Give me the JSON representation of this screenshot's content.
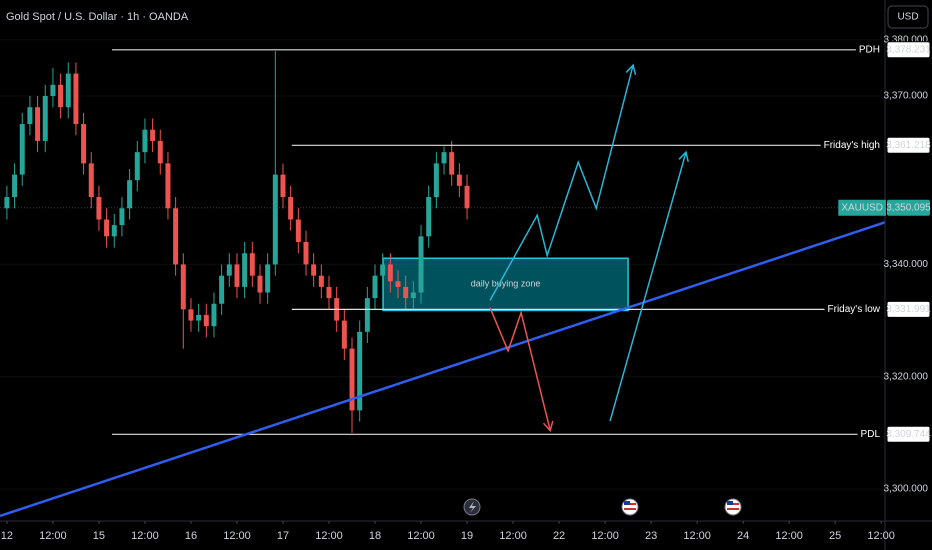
{
  "chart_data": {
    "type": "candlestick",
    "title": "Gold Spot / U.S. Dollar · 1h · OANDA",
    "currency": "USD",
    "up_color": "#26a69a",
    "down_color": "#ef5350",
    "xlim": [
      -1.8,
      229
    ],
    "ylim": [
      3294.3,
      3387.1
    ],
    "xticks": [
      {
        "value": 0,
        "label": "12"
      },
      {
        "value": 12,
        "label": "12:00"
      },
      {
        "value": 24,
        "label": "15"
      },
      {
        "value": 36,
        "label": "12:00"
      },
      {
        "value": 48,
        "label": "16"
      },
      {
        "value": 60,
        "label": "12:00"
      },
      {
        "value": 72,
        "label": "17"
      },
      {
        "value": 84,
        "label": "12:00"
      },
      {
        "value": 96,
        "label": "18"
      },
      {
        "value": 108,
        "label": "12:00"
      },
      {
        "value": 120,
        "label": "19"
      },
      {
        "value": 132,
        "label": "12:00"
      },
      {
        "value": 144,
        "label": "22"
      },
      {
        "value": 156,
        "label": "12:00"
      },
      {
        "value": 168,
        "label": "23"
      },
      {
        "value": 180,
        "label": "12:00"
      },
      {
        "value": 192,
        "label": "24"
      },
      {
        "value": 204,
        "label": "12:00"
      },
      {
        "value": 216,
        "label": "25"
      },
      {
        "value": 228,
        "label": "12:00"
      }
    ],
    "yticks": [
      {
        "value": 3300,
        "label": "3,300.000"
      },
      {
        "value": 3320,
        "label": "3,320.000"
      },
      {
        "value": 3340,
        "label": "3,340.000"
      },
      {
        "value": 3370,
        "label": "3,370.000"
      },
      {
        "value": 3380,
        "label": "3,380.000"
      }
    ],
    "x": [
      0,
      2,
      4,
      6,
      8,
      10,
      12,
      14,
      16,
      18,
      20,
      22,
      24,
      26,
      28,
      30,
      32,
      34,
      36,
      38,
      40,
      42,
      44,
      46,
      48,
      50,
      52,
      54,
      56,
      58,
      60,
      62,
      64,
      66,
      68,
      70,
      72,
      74,
      76,
      78,
      80,
      82,
      84,
      86,
      88,
      90,
      92,
      94,
      96,
      98,
      100,
      102,
      104,
      106,
      108,
      110,
      112,
      114,
      116,
      118,
      120
    ],
    "open": [
      3350,
      3352,
      3356,
      3365,
      3368,
      3362,
      3370,
      3372,
      3368,
      3374,
      3365,
      3358,
      3352,
      3348,
      3345,
      3347,
      3350,
      3355,
      3360,
      3364,
      3362,
      3358,
      3350,
      3340,
      3332,
      3330,
      3331,
      3329,
      3333,
      3338,
      3340,
      3336,
      3342,
      3338,
      3335,
      3340,
      3356,
      3352,
      3348,
      3344,
      3340,
      3338,
      3336,
      3334,
      3330,
      3325,
      3314,
      3328,
      3334,
      3338,
      3340,
      3337,
      3336,
      3334,
      3335,
      3345,
      3352,
      3358,
      3360,
      3356,
      3354
    ],
    "high": [
      3354,
      3358,
      3367,
      3370,
      3370,
      3372,
      3375,
      3374,
      3376,
      3376,
      3367,
      3360,
      3354,
      3350,
      3349,
      3352,
      3357,
      3362,
      3366,
      3366,
      3364,
      3360,
      3352,
      3342,
      3334,
      3333,
      3333,
      3335,
      3340,
      3342,
      3342,
      3344,
      3344,
      3340,
      3342,
      3378,
      3358,
      3354,
      3350,
      3346,
      3342,
      3340,
      3338,
      3336,
      3332,
      3327,
      3330,
      3336,
      3340,
      3342,
      3342,
      3339,
      3338,
      3337,
      3347,
      3354,
      3360,
      3361,
      3362,
      3358,
      3356
    ],
    "low": [
      3348,
      3350,
      3354,
      3363,
      3360,
      3360,
      3368,
      3366,
      3366,
      3363,
      3356,
      3350,
      3346,
      3343,
      3343,
      3345,
      3348,
      3353,
      3358,
      3360,
      3356,
      3348,
      3338,
      3325,
      3328,
      3328,
      3327,
      3327,
      3331,
      3336,
      3334,
      3334,
      3336,
      3333,
      3333,
      3338,
      3350,
      3346,
      3342,
      3338,
      3336,
      3334,
      3332,
      3328,
      3323,
      3310,
      3312,
      3326,
      3332,
      3336,
      3335,
      3334,
      3332,
      3332,
      3333,
      3343,
      3350,
      3356,
      3354,
      3352,
      3348
    ],
    "close": [
      3352,
      3356,
      3365,
      3368,
      3362,
      3370,
      3372,
      3368,
      3374,
      3365,
      3358,
      3352,
      3348,
      3345,
      3347,
      3350,
      3355,
      3360,
      3364,
      3362,
      3358,
      3350,
      3340,
      3332,
      3330,
      3331,
      3329,
      3333,
      3338,
      3340,
      3336,
      3342,
      3338,
      3335,
      3340,
      3356,
      3352,
      3348,
      3344,
      3340,
      3338,
      3336,
      3334,
      3330,
      3325,
      3314,
      3328,
      3334,
      3338,
      3340,
      3337,
      3336,
      3334,
      3335,
      3345,
      3352,
      3358,
      3360,
      3356,
      3354,
      3350
    ],
    "levels": [
      {
        "label": "PDH",
        "value": 3378.231,
        "value_label": "3,378.231",
        "x_start": 27.4
      },
      {
        "label": "Friday's high",
        "value": 3361.218,
        "value_label": "3,361.218",
        "x_start": 74.3
      },
      {
        "label": "Friday's low",
        "value": 3331.991,
        "value_label": "3,331.991",
        "x_start": 74.3
      },
      {
        "label": "PDL",
        "value": 3309.744,
        "value_label": "3,309.744",
        "x_start": 27.4
      }
    ],
    "last_price": {
      "label": "XAUUSD",
      "value": 3350.095,
      "value_label": "3,350.095"
    },
    "zone": {
      "label": "daily buying zone",
      "x": [
        98.1,
        162
      ],
      "y": [
        3331.8,
        3341.1
      ]
    },
    "trendline": {
      "x": [
        -1.8,
        229
      ],
      "y": [
        3295.2,
        3347.5
      ],
      "color": "#2f5ef0"
    },
    "arrows": [
      {
        "color": "#29b6d6",
        "x": [
          126,
          138.3,
          140.9,
          149,
          153.7,
          163.3
        ],
        "y": [
          3333.6,
          3348.75,
          3341.6,
          3358.2,
          3350,
          3375.5
        ]
      },
      {
        "color": "#29b6d6",
        "x": [
          157.3,
          177.1
        ],
        "y": [
          3312.1,
          3360
        ]
      },
      {
        "color": "#ef5350",
        "x": [
          126,
          130.7,
          134.1,
          141.7
        ],
        "y": [
          3332.3,
          3324.6,
          3331.4,
          3310.4
        ]
      }
    ]
  }
}
